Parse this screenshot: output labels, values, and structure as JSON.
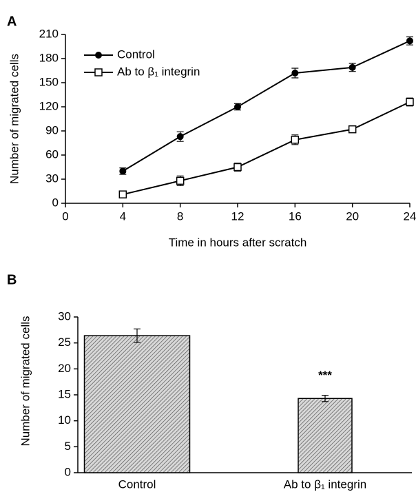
{
  "chart_data": [
    {
      "type": "line",
      "label": "A",
      "x_label": "Time in hours after scratch",
      "y_label": "Number of migrated cells",
      "xlim": [
        0,
        24
      ],
      "xticks": [
        0,
        4,
        8,
        12,
        16,
        20,
        24
      ],
      "ylim": [
        0,
        210
      ],
      "yticks": [
        0,
        30,
        60,
        90,
        120,
        150,
        180,
        210
      ],
      "x": [
        4,
        8,
        12,
        16,
        20,
        24
      ],
      "series": [
        {
          "name": "Control",
          "color": "#000000",
          "marker": "filled-circle",
          "values": [
            40,
            83,
            120,
            162,
            169,
            202
          ],
          "errors": [
            4,
            6,
            4,
            6,
            5,
            5
          ]
        },
        {
          "name": "Ab to β₁ integrin",
          "color": "#000000",
          "marker": "open-square",
          "values": [
            11,
            28,
            45,
            79,
            92,
            126
          ],
          "errors": [
            4,
            6,
            5,
            6,
            4,
            5
          ]
        }
      ],
      "legend": "top-left"
    },
    {
      "type": "bar",
      "label": "B",
      "y_label": "Number of migrated cells",
      "categories": [
        "Control",
        "Ab to β₁ integrin"
      ],
      "values": [
        26.4,
        14.3
      ],
      "errors": [
        1.3,
        0.6
      ],
      "color": "#808080",
      "pattern": "hatch",
      "ylim": [
        0,
        30
      ],
      "yticks": [
        0,
        5,
        10,
        15,
        20,
        25,
        30
      ],
      "annotation": "***"
    }
  ]
}
